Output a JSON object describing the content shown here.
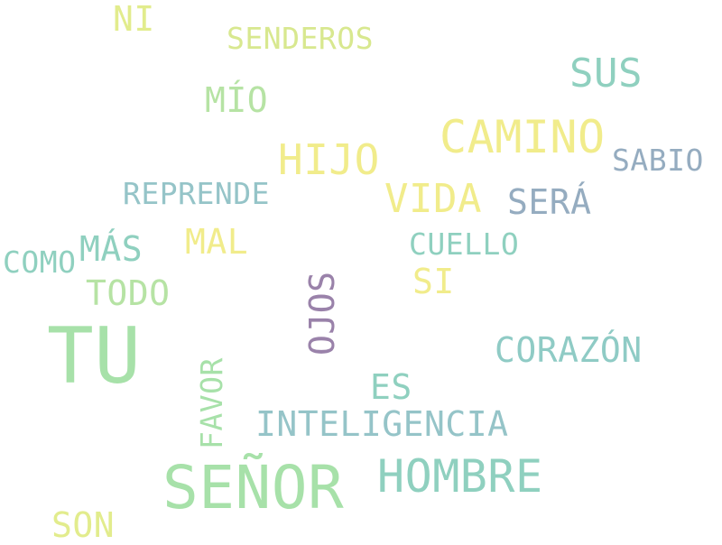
{
  "words": [
    {
      "text": "TU",
      "color": "#a7e1a9"
    },
    {
      "text": "SEÑOR",
      "color": "#a7e1a9"
    },
    {
      "text": "CAMINO",
      "color": "#f1ec8b"
    },
    {
      "text": "HIJO",
      "color": "#f1ec8b"
    },
    {
      "text": "VIDA",
      "color": "#f1ec8b"
    },
    {
      "text": "HOMBRE",
      "color": "#8fd0bf"
    },
    {
      "text": "SUS",
      "color": "#8fd0bf"
    },
    {
      "text": "CORAZÓN",
      "color": "#8fcbc5"
    },
    {
      "text": "INTELIGENCIA",
      "color": "#95c4c8"
    },
    {
      "text": "SERÁ",
      "color": "#95acc0"
    },
    {
      "text": "MÍO",
      "color": "#b6e3a4"
    },
    {
      "text": "MAL",
      "color": "#f1ec8b"
    },
    {
      "text": "MÁS",
      "color": "#8fd0bf"
    },
    {
      "text": "SI",
      "color": "#f1ec8b"
    },
    {
      "text": "ES",
      "color": "#8fd0bf"
    },
    {
      "text": "TODO",
      "color": "#b6e3a4"
    },
    {
      "text": "REPRENDE",
      "color": "#95c4c8"
    },
    {
      "text": "SABIO",
      "color": "#95acc0"
    },
    {
      "text": "CUELLO",
      "color": "#8fd0bf"
    },
    {
      "text": "COMO",
      "color": "#8fd0bf"
    },
    {
      "text": "SENDEROS",
      "color": "#d8e88f"
    },
    {
      "text": "NI",
      "color": "#e2ec8d"
    },
    {
      "text": "SON",
      "color": "#e2ec8d"
    },
    {
      "text": "OJOS",
      "color": "#9a82aa"
    },
    {
      "text": "FAVOR",
      "color": "#a7e1a9"
    }
  ]
}
